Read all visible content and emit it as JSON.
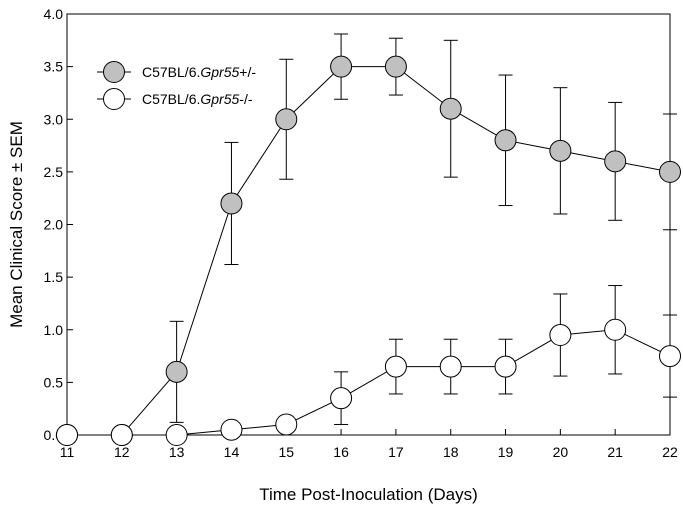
{
  "chart_data": {
    "type": "line",
    "xlabel": "Time Post-Inoculation (Days)",
    "ylabel": "Mean Clinical Score ± SEM",
    "xlim": [
      11,
      22
    ],
    "ylim": [
      0,
      4
    ],
    "x_ticks": [
      "11",
      "12",
      "13",
      "14",
      "15",
      "16",
      "17",
      "18",
      "19",
      "20",
      "21",
      "22"
    ],
    "y_ticks": [
      "0.0",
      "0.5",
      "1.0",
      "1.5",
      "2.0",
      "2.5",
      "3.0",
      "3.5",
      "4.0"
    ],
    "grid": false,
    "legend_position": "top-left",
    "x": [
      11,
      12,
      13,
      14,
      15,
      16,
      17,
      18,
      19,
      20,
      21,
      22
    ],
    "series": [
      {
        "name_prefix": "C57BL/6.",
        "name_italic": "Gpr55",
        "name_suffix": "+/-",
        "fill": "#c0c0c0",
        "values": [
          0,
          0,
          0.6,
          2.2,
          3.0,
          3.5,
          3.5,
          3.1,
          2.8,
          2.7,
          2.6,
          2.5
        ],
        "errors": [
          0,
          0,
          0.48,
          0.58,
          0.57,
          0.31,
          0.27,
          0.65,
          0.62,
          0.6,
          0.56,
          0.55
        ]
      },
      {
        "name_prefix": "C57BL/6.",
        "name_italic": "Gpr55",
        "name_suffix": "-/-",
        "fill": "#ffffff",
        "values": [
          0,
          0,
          0,
          0.05,
          0.1,
          0.35,
          0.65,
          0.65,
          0.65,
          0.95,
          1.0,
          0.75
        ],
        "errors": [
          0,
          0,
          0,
          0,
          0,
          0.25,
          0.26,
          0.26,
          0.26,
          0.39,
          0.42,
          0.39
        ]
      }
    ]
  }
}
